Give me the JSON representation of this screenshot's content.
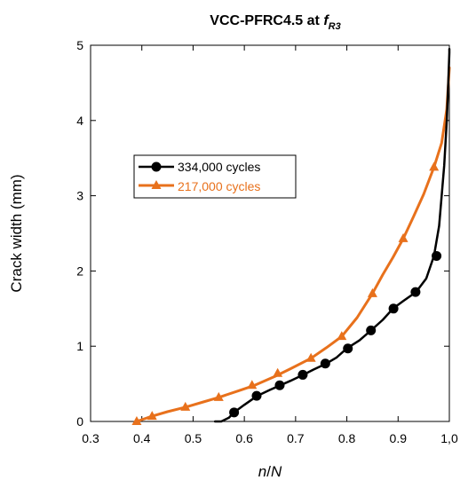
{
  "chart_data": {
    "type": "line",
    "title": {
      "main": "VCC-PFRC4.5 at ",
      "f": "f",
      "sub": "R3"
    },
    "xlabel": {
      "n": "n",
      "sep": "/",
      "N": "N"
    },
    "ylabel": "Crack width (mm)",
    "xlim": [
      0.3,
      1.0
    ],
    "ylim": [
      0,
      5
    ],
    "x_ticks": [
      0.3,
      0.4,
      0.5,
      0.6,
      0.7,
      0.8,
      0.9,
      1.0
    ],
    "x_tick_labels": [
      "0.3",
      "0.4",
      "0.5",
      "0.6",
      "0.7",
      "0.8",
      "0.9",
      "1,0"
    ],
    "y_ticks": [
      0,
      1,
      2,
      3,
      4,
      5
    ],
    "y_tick_labels": [
      "0",
      "1",
      "2",
      "3",
      "4",
      "5"
    ],
    "grid": false,
    "legend_position": "middle-left",
    "series": [
      {
        "name": "334,000 cycles",
        "color": "#000000",
        "marker": "circle",
        "x": [
          0.543,
          0.555,
          0.57,
          0.58,
          0.6,
          0.625,
          0.65,
          0.67,
          0.69,
          0.715,
          0.735,
          0.76,
          0.78,
          0.8,
          0.825,
          0.847,
          0.87,
          0.89,
          0.91,
          0.935,
          0.955,
          0.97,
          0.98,
          0.99,
          0.995,
          0.998,
          1.0,
          1.0
        ],
        "y": [
          0.0,
          0.0,
          0.05,
          0.12,
          0.22,
          0.34,
          0.42,
          0.48,
          0.54,
          0.62,
          0.69,
          0.77,
          0.85,
          0.97,
          1.08,
          1.21,
          1.35,
          1.5,
          1.6,
          1.72,
          1.9,
          2.2,
          2.6,
          3.4,
          4.0,
          4.5,
          4.9,
          4.95
        ],
        "marker_x": [
          0.58,
          0.624,
          0.669,
          0.714,
          0.758,
          0.802,
          0.847,
          0.891,
          0.934,
          0.975
        ],
        "marker_y": [
          0.12,
          0.34,
          0.48,
          0.62,
          0.77,
          0.97,
          1.21,
          1.5,
          1.72,
          2.2
        ]
      },
      {
        "name": "217,000 cycles",
        "color": "#E8711C",
        "marker": "triangle",
        "x": [
          0.39,
          0.42,
          0.45,
          0.485,
          0.52,
          0.55,
          0.59,
          0.62,
          0.66,
          0.69,
          0.73,
          0.76,
          0.79,
          0.82,
          0.85,
          0.87,
          0.89,
          0.91,
          0.93,
          0.95,
          0.97,
          0.985,
          0.995,
          1.0
        ],
        "y": [
          0.0,
          0.07,
          0.13,
          0.19,
          0.26,
          0.32,
          0.41,
          0.48,
          0.6,
          0.7,
          0.84,
          0.98,
          1.13,
          1.38,
          1.7,
          1.95,
          2.18,
          2.43,
          2.72,
          3.02,
          3.38,
          3.7,
          4.15,
          4.7
        ],
        "marker_x": [
          0.39,
          0.42,
          0.485,
          0.55,
          0.615,
          0.665,
          0.73,
          0.79,
          0.85,
          0.91,
          0.97
        ],
        "marker_y": [
          0.0,
          0.07,
          0.19,
          0.32,
          0.48,
          0.64,
          0.84,
          1.13,
          1.7,
          2.43,
          3.38
        ]
      }
    ]
  }
}
